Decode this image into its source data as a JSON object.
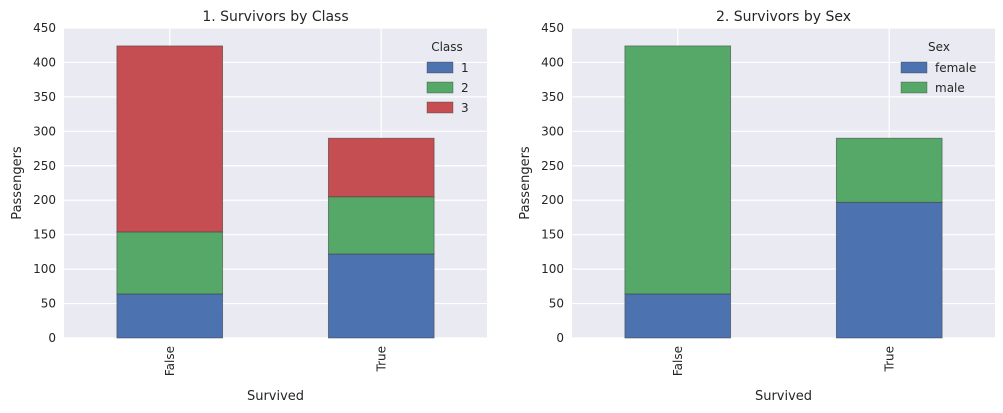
{
  "chart_data": [
    {
      "type": "bar",
      "stacked": true,
      "title": "1. Survivors by Class",
      "xlabel": "Survived",
      "ylabel": "Passengers",
      "categories": [
        "False",
        "True"
      ],
      "ylim": [
        0,
        450
      ],
      "yticks": [
        0,
        50,
        100,
        150,
        200,
        250,
        300,
        350,
        400,
        450
      ],
      "grid": true,
      "legend": {
        "title": "Class",
        "position": "top-right"
      },
      "series": [
        {
          "name": "1",
          "values": [
            64,
            122
          ],
          "color": "#4c72b0"
        },
        {
          "name": "2",
          "values": [
            90,
            83
          ],
          "color": "#55a868"
        },
        {
          "name": "3",
          "values": [
            270,
            85
          ],
          "color": "#c44e52"
        }
      ]
    },
    {
      "type": "bar",
      "stacked": true,
      "title": "2. Survivors by Sex",
      "xlabel": "Survived",
      "ylabel": "Passengers",
      "categories": [
        "False",
        "True"
      ],
      "ylim": [
        0,
        450
      ],
      "yticks": [
        0,
        50,
        100,
        150,
        200,
        250,
        300,
        350,
        400,
        450
      ],
      "grid": true,
      "legend": {
        "title": "Sex",
        "position": "top-right"
      },
      "series": [
        {
          "name": "female",
          "values": [
            64,
            197
          ],
          "color": "#4c72b0"
        },
        {
          "name": "male",
          "values": [
            360,
            93
          ],
          "color": "#55a868"
        }
      ]
    }
  ]
}
